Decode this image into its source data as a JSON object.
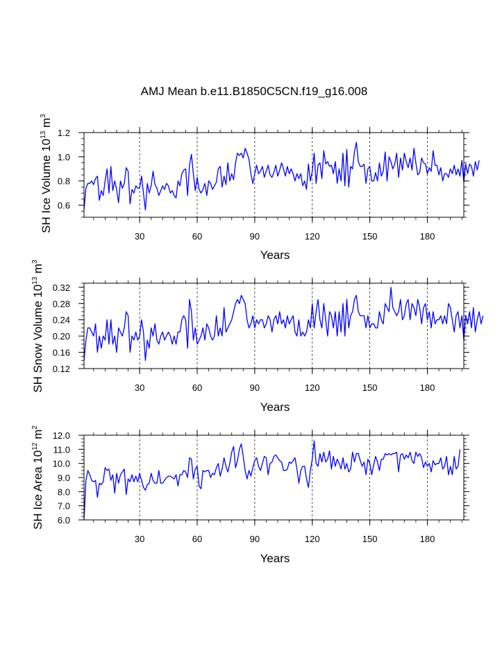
{
  "chart_data": {
    "title": "AMJ Mean b.e11.B1850C5CN.f19_g16.008",
    "line_color": "#0000ff",
    "panels": [
      {
        "type": "line",
        "series_name": "SH Ice Volume",
        "ylabel_prefix": "SH Ice Volume 10",
        "ylabel_exp": "13",
        "ylabel_unit": " m",
        "ylabel_unit_exp": "3",
        "xlabel": "Years",
        "xlim": [
          1,
          199
        ],
        "ylim": [
          0.5,
          1.2
        ],
        "xticks": [
          30,
          60,
          90,
          120,
          150,
          180
        ],
        "yticks": [
          0.6,
          0.8,
          1.0,
          1.2
        ],
        "ytick_labels": [
          "0.6",
          "0.8",
          "1.0",
          "1.2"
        ],
        "y_minor_step": 0.05,
        "x_minor_step": 6,
        "vgrid": [
          30,
          60,
          90,
          120,
          150,
          180
        ],
        "y": [
          0.56,
          0.74,
          0.78,
          0.78,
          0.8,
          0.77,
          0.82,
          0.84,
          0.64,
          0.72,
          0.68,
          0.8,
          0.9,
          0.7,
          0.92,
          0.72,
          0.8,
          0.73,
          0.62,
          0.8,
          0.74,
          0.78,
          0.91,
          0.88,
          0.61,
          0.73,
          0.7,
          0.76,
          0.74,
          0.74,
          0.84,
          0.7,
          0.56,
          0.78,
          0.7,
          0.76,
          0.88,
          0.77,
          0.74,
          0.68,
          0.72,
          0.76,
          0.73,
          0.78,
          0.76,
          0.7,
          0.72,
          0.68,
          0.66,
          0.8,
          0.76,
          0.86,
          0.89,
          0.9,
          0.68,
          0.93,
          1.02,
          0.86,
          0.72,
          0.83,
          0.73,
          0.7,
          0.73,
          0.78,
          0.68,
          0.8,
          0.78,
          0.73,
          0.76,
          0.79,
          0.9,
          0.92,
          0.75,
          0.84,
          0.77,
          0.95,
          0.8,
          0.86,
          0.81,
          0.95,
          1.03,
          1.01,
          1.03,
          0.99,
          1.07,
          1.03,
          0.98,
          0.86,
          0.78,
          0.86,
          0.93,
          0.86,
          0.88,
          0.92,
          0.83,
          0.88,
          0.93,
          0.85,
          0.83,
          0.87,
          0.93,
          0.84,
          0.89,
          0.95,
          0.9,
          0.84,
          0.92,
          0.86,
          0.9,
          0.86,
          0.8,
          0.86,
          0.82,
          0.86,
          0.76,
          0.8,
          0.73,
          0.94,
          0.8,
          0.88,
          1.03,
          0.78,
          0.93,
          0.95,
          0.82,
          1.05,
          0.94,
          0.96,
          0.92,
          0.93,
          0.86,
          0.96,
          0.78,
          0.9,
          0.8,
          1.03,
          0.76,
          1.06,
          0.75,
          0.92,
          0.9,
          1.04,
          1.12,
          0.96,
          0.92,
          0.92,
          0.94,
          0.78,
          0.9,
          0.92,
          0.8,
          0.8,
          0.87,
          0.8,
          0.95,
          0.84,
          0.88,
          1.04,
          0.8,
          1.0,
          0.96,
          0.9,
          0.94,
          1.03,
          0.83,
          0.99,
          0.89,
          1.03,
          0.96,
          0.91,
          0.99,
          0.89,
          1.07,
          0.95,
          0.85,
          0.87,
          0.99,
          0.95,
          0.94,
          0.86,
          0.91,
          0.88,
          1.05,
          0.93,
          0.93,
          0.85,
          0.91,
          0.8,
          0.86,
          0.86,
          0.83,
          0.9,
          0.86,
          0.93,
          0.85,
          0.9,
          0.84,
          0.97,
          0.79,
          0.94,
          0.86,
          0.94,
          0.92,
          0.84,
          0.96,
          0.89,
          0.97
        ]
      },
      {
        "type": "line",
        "series_name": "SH Snow Volume",
        "ylabel_prefix": "SH Snow Volume 10",
        "ylabel_exp": "13",
        "ylabel_unit": " m",
        "ylabel_unit_exp": "3",
        "xlabel": "Years",
        "xlim": [
          1,
          199
        ],
        "ylim": [
          0.12,
          0.33
        ],
        "xticks": [
          30,
          60,
          90,
          120,
          150,
          180
        ],
        "yticks": [
          0.12,
          0.16,
          0.2,
          0.24,
          0.28,
          0.32
        ],
        "ytick_labels": [
          "0.12",
          "0.16",
          "0.20",
          "0.24",
          "0.28",
          "0.32"
        ],
        "y_minor_step": 0.01,
        "x_minor_step": 6,
        "vgrid": [
          30,
          60,
          90,
          120,
          150,
          180
        ],
        "y": [
          0.14,
          0.19,
          0.22,
          0.22,
          0.21,
          0.2,
          0.23,
          0.16,
          0.2,
          0.17,
          0.2,
          0.19,
          0.24,
          0.18,
          0.24,
          0.18,
          0.2,
          0.16,
          0.22,
          0.21,
          0.2,
          0.22,
          0.26,
          0.25,
          0.16,
          0.2,
          0.19,
          0.21,
          0.19,
          0.2,
          0.24,
          0.21,
          0.14,
          0.19,
          0.17,
          0.22,
          0.2,
          0.23,
          0.19,
          0.18,
          0.2,
          0.21,
          0.19,
          0.2,
          0.21,
          0.2,
          0.18,
          0.2,
          0.18,
          0.21,
          0.21,
          0.24,
          0.25,
          0.24,
          0.17,
          0.29,
          0.26,
          0.19,
          0.22,
          0.18,
          0.19,
          0.2,
          0.22,
          0.19,
          0.23,
          0.22,
          0.2,
          0.19,
          0.2,
          0.25,
          0.2,
          0.22,
          0.2,
          0.27,
          0.21,
          0.22,
          0.23,
          0.24,
          0.26,
          0.28,
          0.29,
          0.28,
          0.3,
          0.29,
          0.28,
          0.24,
          0.22,
          0.23,
          0.25,
          0.22,
          0.24,
          0.23,
          0.24,
          0.24,
          0.22,
          0.23,
          0.25,
          0.24,
          0.21,
          0.24,
          0.25,
          0.23,
          0.26,
          0.23,
          0.24,
          0.22,
          0.25,
          0.23,
          0.24,
          0.25,
          0.21,
          0.2,
          0.24,
          0.2,
          0.21,
          0.2,
          0.21,
          0.24,
          0.22,
          0.28,
          0.22,
          0.26,
          0.29,
          0.24,
          0.22,
          0.28,
          0.24,
          0.2,
          0.26,
          0.25,
          0.22,
          0.26,
          0.2,
          0.26,
          0.21,
          0.28,
          0.2,
          0.29,
          0.22,
          0.25,
          0.26,
          0.29,
          0.3,
          0.26,
          0.25,
          0.25,
          0.25,
          0.22,
          0.25,
          0.22,
          0.23,
          0.23,
          0.22,
          0.22,
          0.26,
          0.24,
          0.23,
          0.28,
          0.27,
          0.26,
          0.32,
          0.27,
          0.26,
          0.25,
          0.26,
          0.29,
          0.24,
          0.25,
          0.28,
          0.29,
          0.24,
          0.28,
          0.27,
          0.25,
          0.29,
          0.27,
          0.23,
          0.27,
          0.28,
          0.24,
          0.26,
          0.22,
          0.26,
          0.23,
          0.24,
          0.24,
          0.25,
          0.23,
          0.25,
          0.23,
          0.28,
          0.27,
          0.24,
          0.21,
          0.25,
          0.26,
          0.22,
          0.25,
          0.19,
          0.25,
          0.23,
          0.26,
          0.22,
          0.27,
          0.21,
          0.24,
          0.26,
          0.23,
          0.25
        ]
      },
      {
        "type": "line",
        "series_name": "SH Ice Area",
        "ylabel_prefix": "SH Ice Area 10",
        "ylabel_exp": "12",
        "ylabel_unit": " m",
        "ylabel_unit_exp": "2",
        "xlabel": "Years",
        "xlim": [
          1,
          199
        ],
        "ylim": [
          6.0,
          12.0
        ],
        "xticks": [
          30,
          60,
          90,
          120,
          150,
          180
        ],
        "yticks": [
          6.0,
          7.0,
          8.0,
          9.0,
          10.0,
          11.0,
          12.0
        ],
        "ytick_labels": [
          "6.0",
          "7.0",
          "8.0",
          "9.0",
          "10.0",
          "11.0",
          "12.0"
        ],
        "y_minor_step": 0.25,
        "x_minor_step": 6,
        "vgrid": [
          30,
          60,
          90,
          120,
          150,
          180
        ],
        "y": [
          6.0,
          8.8,
          9.5,
          9.2,
          8.8,
          8.7,
          8.8,
          7.6,
          8.6,
          8.5,
          8.7,
          9.7,
          9.5,
          9.6,
          8.8,
          9.2,
          7.9,
          9.3,
          8.6,
          9.2,
          9.4,
          9.6,
          7.8,
          8.9,
          8.7,
          9.2,
          8.7,
          9.1,
          8.7,
          9.3,
          8.8,
          8.3,
          8.1,
          8.5,
          8.6,
          9.3,
          8.8,
          8.6,
          8.6,
          9.5,
          8.6,
          8.6,
          8.8,
          9.0,
          9.1,
          9.1,
          9.0,
          8.9,
          9.2,
          8.4,
          9.2,
          9.2,
          9.5,
          9.4,
          9.0,
          10.4,
          10.3,
          8.9,
          9.6,
          9.8,
          8.4,
          8.2,
          9.5,
          9.4,
          9.5,
          9.5,
          9.0,
          9.3,
          9.2,
          9.7,
          10.0,
          9.1,
          9.6,
          10.4,
          9.8,
          9.4,
          10.0,
          10.8,
          11.2,
          9.7,
          10.2,
          11.0,
          11.4,
          10.5,
          9.5,
          8.9,
          9.5,
          9.1,
          9.7,
          10.2,
          10.4,
          9.8,
          9.5,
          10.0,
          10.5,
          10.4,
          9.2,
          10.0,
          10.1,
          10.5,
          10.6,
          10.4,
          10.2,
          10.1,
          9.5,
          9.5,
          9.6,
          10.1,
          10.0,
          10.2,
          10.4,
          9.6,
          8.6,
          9.5,
          9.8,
          9.8,
          8.9,
          8.3,
          9.5,
          10.3,
          11.6,
          10.0,
          9.8,
          10.7,
          10.1,
          10.8,
          10.1,
          10.3,
          10.9,
          9.6,
          10.5,
          9.8,
          10.3,
          10.0,
          9.6,
          10.4,
          9.6,
          10.0,
          9.4,
          9.6,
          10.8,
          10.1,
          10.7,
          10.7,
          10.2,
          9.8,
          10.1,
          9.2,
          10.3,
          10.0,
          9.2,
          9.9,
          10.5,
          10.1,
          9.5,
          10.3,
          10.3,
          10.7,
          10.6,
          10.7,
          10.6,
          10.7,
          10.7,
          10.8,
          9.4,
          10.6,
          10.7,
          10.3,
          10.6,
          10.4,
          10.8,
          10.2,
          10.0,
          10.8,
          10.5,
          10.7,
          10.4,
          9.7,
          10.1,
          9.8,
          10.0,
          9.4,
          10.2,
          9.9,
          10.0,
          10.0,
          10.4,
          9.6,
          9.8,
          10.5,
          9.2,
          9.8,
          9.2,
          10.5,
          9.6,
          9.8,
          11.0
        ]
      }
    ]
  }
}
